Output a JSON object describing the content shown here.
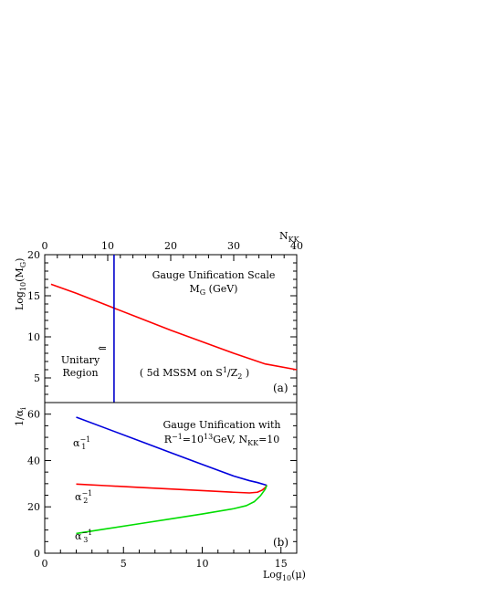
{
  "chart_data": [
    {
      "type": "line",
      "panel_label": "(a)",
      "ylabel_main": "Log",
      "ylabel_sub": "10",
      "ylabel_rest": "(M",
      "ylabel_rest_sub": "G",
      "ylabel_close": ")",
      "top_axis_label_main": "N",
      "top_axis_label_sub": "KK",
      "top_xlim": [
        0,
        40
      ],
      "top_xticks": [
        0,
        10,
        20,
        30,
        40
      ],
      "ylim": [
        2,
        20
      ],
      "yticks": [
        5,
        10,
        15,
        20
      ],
      "series": [
        {
          "color": "#ff0000",
          "x": [
            1,
            5,
            10,
            15,
            20,
            25,
            30,
            35,
            40
          ],
          "y": [
            16.4,
            15.3,
            13.8,
            12.3,
            10.8,
            9.4,
            8.0,
            6.7,
            6.0
          ]
        }
      ],
      "vertical_line": {
        "color": "#0000cc",
        "x": 11
      },
      "annotations": {
        "title_line1": "Gauge Unification Scale",
        "title_line2_main": "M",
        "title_line2_sub": "G",
        "title_line2_rest": " (GeV)",
        "arrow_symbol": "⇐",
        "region_line1": "Unitary",
        "region_line2": "Region",
        "model_pre": "( 5d MSSM on S",
        "model_sup1": "1",
        "model_mid": "/Z",
        "model_sub2": "2",
        "model_post": " )"
      }
    },
    {
      "type": "line",
      "panel_label": "(b)",
      "ylabel_main": "1/α",
      "ylabel_sub": "i",
      "xlabel_main": "Log",
      "xlabel_sub": "10",
      "xlabel_rest": "(μ)",
      "xlim": [
        0,
        16
      ],
      "xticks": [
        0,
        5,
        10,
        15
      ],
      "ylim": [
        0,
        65
      ],
      "yticks": [
        0,
        20,
        40,
        60
      ],
      "series": [
        {
          "name_main": "α",
          "name_sub": "1",
          "name_sup": "−1",
          "color": "#0000dd",
          "x": [
            2,
            4,
            6,
            8,
            10,
            12,
            13,
            13.5,
            14.1
          ],
          "y": [
            58.7,
            53.6,
            48.5,
            43.4,
            38.3,
            33.3,
            31.3,
            30.5,
            29.3
          ]
        },
        {
          "name_main": "α",
          "name_sub": "2",
          "name_sup": "−1",
          "color": "#ff0000",
          "x": [
            2,
            4,
            6,
            8,
            10,
            12,
            13,
            13.5,
            13.8,
            14.0,
            14.1
          ],
          "y": [
            29.8,
            29.1,
            28.4,
            27.7,
            27.0,
            26.3,
            26.0,
            26.3,
            27.2,
            28.3,
            29.3
          ]
        },
        {
          "name_main": "α",
          "name_sub": "3",
          "name_sup": "−1",
          "color": "#00dd00",
          "x": [
            2,
            4,
            6,
            8,
            10,
            12,
            12.8,
            13.3,
            13.7,
            14.0,
            14.1
          ],
          "y": [
            8.5,
            10.6,
            12.7,
            14.8,
            16.9,
            19.2,
            20.5,
            22.2,
            24.8,
            27.6,
            29.3
          ]
        }
      ],
      "annotations": {
        "title_line1": "Gauge Unification with",
        "r_main": "R",
        "r_sup": "−1",
        "r_eq": "=10",
        "r_exp": "13",
        "r_unit": "GeV, N",
        "n_sub": "KK",
        "n_eq": "=10"
      }
    }
  ]
}
